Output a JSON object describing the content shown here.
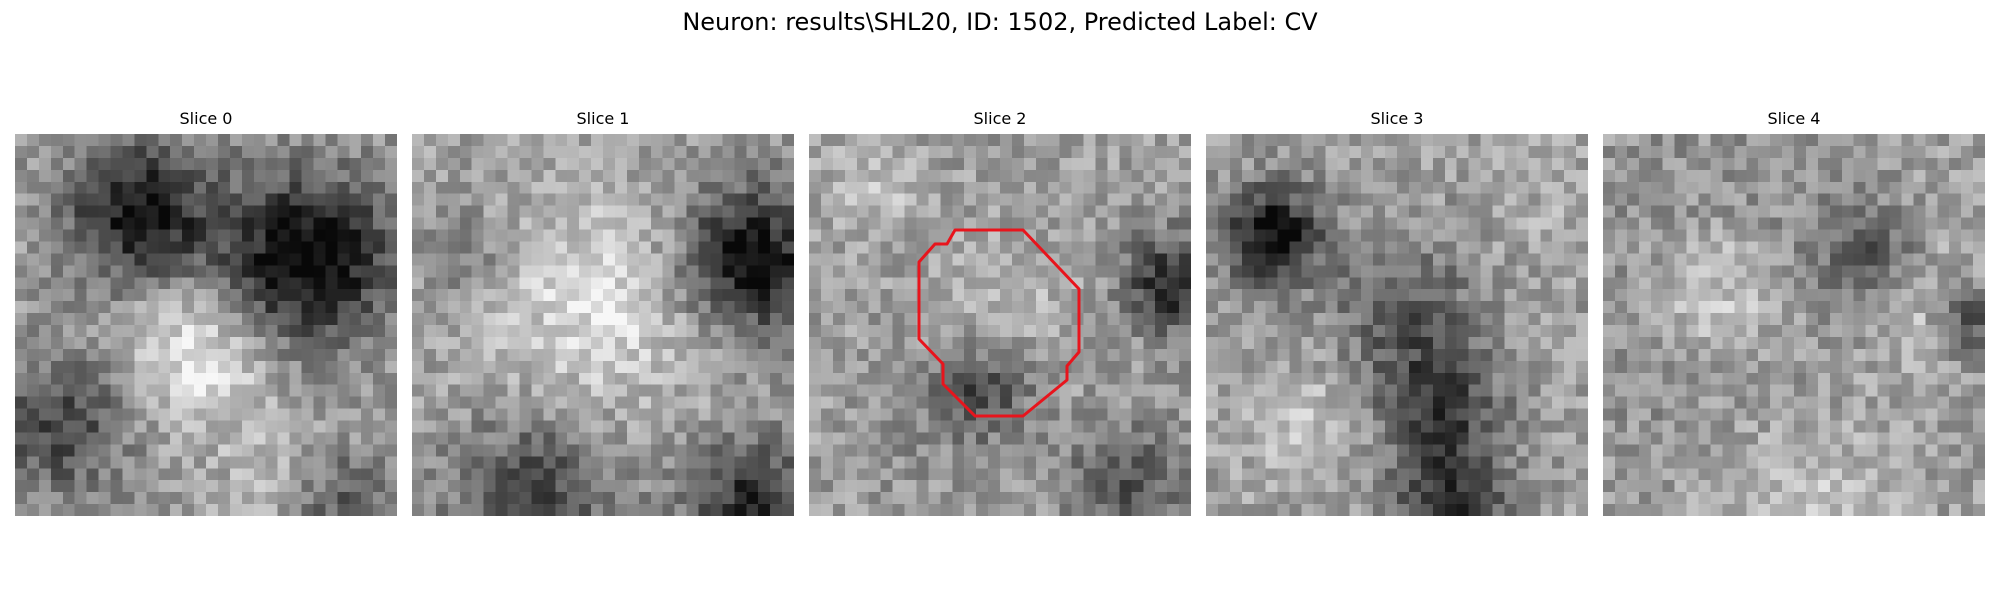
{
  "figure": {
    "title": "Neuron: results\\SHL20, ID: 1502, Predicted Label: CV"
  },
  "slices": [
    {
      "title": "Slice 0",
      "outline": false
    },
    {
      "title": "Slice 1",
      "outline": false
    },
    {
      "title": "Slice 2",
      "outline": true
    },
    {
      "title": "Slice 3",
      "outline": false
    },
    {
      "title": "Slice 4",
      "outline": false
    }
  ],
  "colors": {
    "outline": "#e8141c",
    "colormap": "gray"
  }
}
